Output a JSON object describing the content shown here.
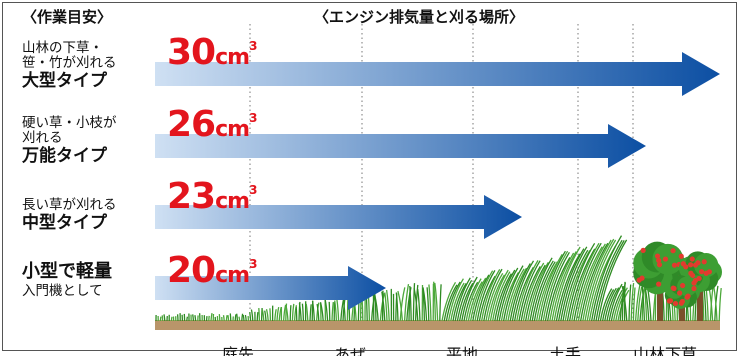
{
  "header": {
    "left": "〈作業目安〉",
    "right": "〈エンジン排気量と刈る場所〉"
  },
  "rows": [
    {
      "desc": [
        "山林の下草・",
        "笹・竹が刈れる"
      ],
      "type": "大型タイプ",
      "volume": "30",
      "unit": "cm",
      "sup": "3"
    },
    {
      "desc": [
        "硬い草・小枝が",
        "刈れる"
      ],
      "type": "万能タイプ",
      "volume": "26",
      "unit": "cm",
      "sup": "3"
    },
    {
      "desc": [
        "長い草が刈れる"
      ],
      "type": "中型タイプ",
      "volume": "23",
      "unit": "cm",
      "sup": "3"
    },
    {
      "desc": [
        "入門機として"
      ],
      "type": "小型で軽量",
      "volume": "20",
      "unit": "cm",
      "sup": "3"
    }
  ],
  "locations": [
    "庭先",
    "あぜ",
    "平地",
    "土手",
    "山林下草"
  ],
  "colors": {
    "arrow_light": "#cfe0f3",
    "arrow_dark": "#0c4fa3",
    "volume_text": "#e3151d",
    "grass": "#2e8b22",
    "soil": "#b9956a",
    "fruit": "#e23b2e"
  }
}
